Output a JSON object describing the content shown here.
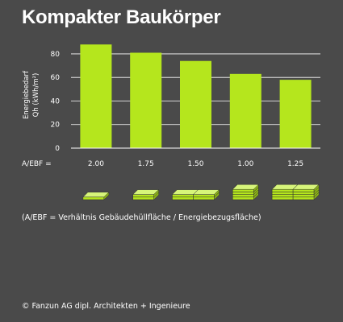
{
  "title": "Kompakter Baukörper",
  "footnote": "(A/EBF = Verhältnis Gebäudehüllfläche / Energiebezugsfläche)",
  "credit": "© Fanzun AG  dipl. Architekten + Ingenieure",
  "x_prefix": "A/EBF =",
  "colors": {
    "bar": "#b5e61d",
    "background": "#4a4a4a",
    "text": "#ffffff",
    "grid": "#ffffff"
  },
  "chart_data": {
    "type": "bar",
    "categories": [
      "2.00",
      "1.75",
      "1.50",
      "1.00",
      "1.25"
    ],
    "values": [
      88,
      81,
      74,
      63,
      58
    ],
    "ylabel_line1": "Energiebedarf",
    "ylabel_line2": "Qh (kWh/m²)",
    "yticks": [
      0,
      20,
      40,
      60,
      80
    ],
    "ylim": [
      0,
      95
    ],
    "grid": true
  },
  "icons": [
    {
      "name": "building-1-icon",
      "blocks": 1,
      "layers": 1
    },
    {
      "name": "building-2-icon",
      "blocks": 1,
      "layers": 2
    },
    {
      "name": "building-3-icon",
      "blocks": 2,
      "layers": 2
    },
    {
      "name": "building-4-icon",
      "blocks": 1,
      "layers": 4
    },
    {
      "name": "building-5-icon",
      "blocks": 2,
      "layers": 4
    }
  ]
}
